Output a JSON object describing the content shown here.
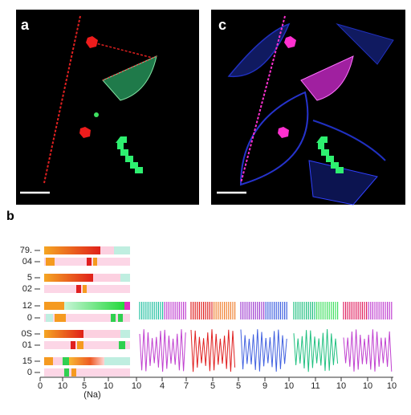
{
  "panels": {
    "a": "a",
    "b": "b",
    "c": "c"
  },
  "y_labels": [
    "79.",
    "04",
    "5",
    "02",
    "12",
    "0",
    "0S",
    "01",
    "15",
    "0"
  ],
  "x_labels": [
    "0",
    "10",
    "5",
    "10",
    "10",
    "4",
    "7",
    "5",
    "5",
    "9",
    "10",
    "11",
    "10",
    "10",
    "10"
  ],
  "x_axis_label": "(Na)"
}
